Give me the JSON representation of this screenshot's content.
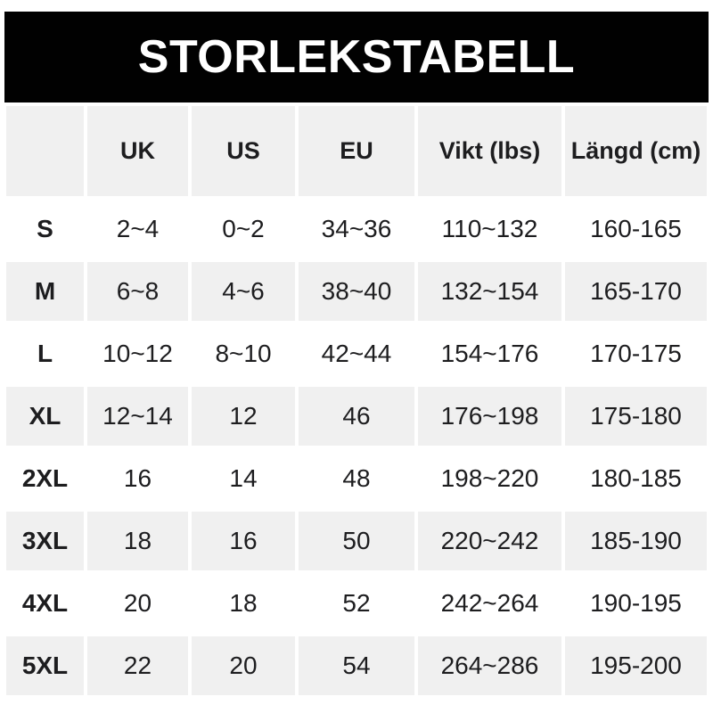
{
  "title": "STORLEKSTABELL",
  "colors": {
    "banner_bg": "#010101",
    "banner_text": "#ffffff",
    "row_alt_bg": "#f0f0f0",
    "row_bg": "#ffffff",
    "text": "#1d1d1f"
  },
  "table": {
    "columns": [
      "",
      "UK",
      "US",
      "EU",
      "Vikt (lbs)",
      "Längd (cm)"
    ],
    "column_keys": [
      "size",
      "uk",
      "us",
      "eu",
      "vikt",
      "langd"
    ],
    "rows": [
      [
        "S",
        "2~4",
        "0~2",
        "34~36",
        "110~132",
        "160-165"
      ],
      [
        "M",
        "6~8",
        "4~6",
        "38~40",
        "132~154",
        "165-170"
      ],
      [
        "L",
        "10~12",
        "8~10",
        "42~44",
        "154~176",
        "170-175"
      ],
      [
        "XL",
        "12~14",
        "12",
        "46",
        "176~198",
        "175-180"
      ],
      [
        "2XL",
        "16",
        "14",
        "48",
        "198~220",
        "180-185"
      ],
      [
        "3XL",
        "18",
        "16",
        "50",
        "220~242",
        "185-190"
      ],
      [
        "4XL",
        "20",
        "18",
        "52",
        "242~264",
        "190-195"
      ],
      [
        "5XL",
        "22",
        "20",
        "54",
        "264~286",
        "195-200"
      ]
    ]
  }
}
